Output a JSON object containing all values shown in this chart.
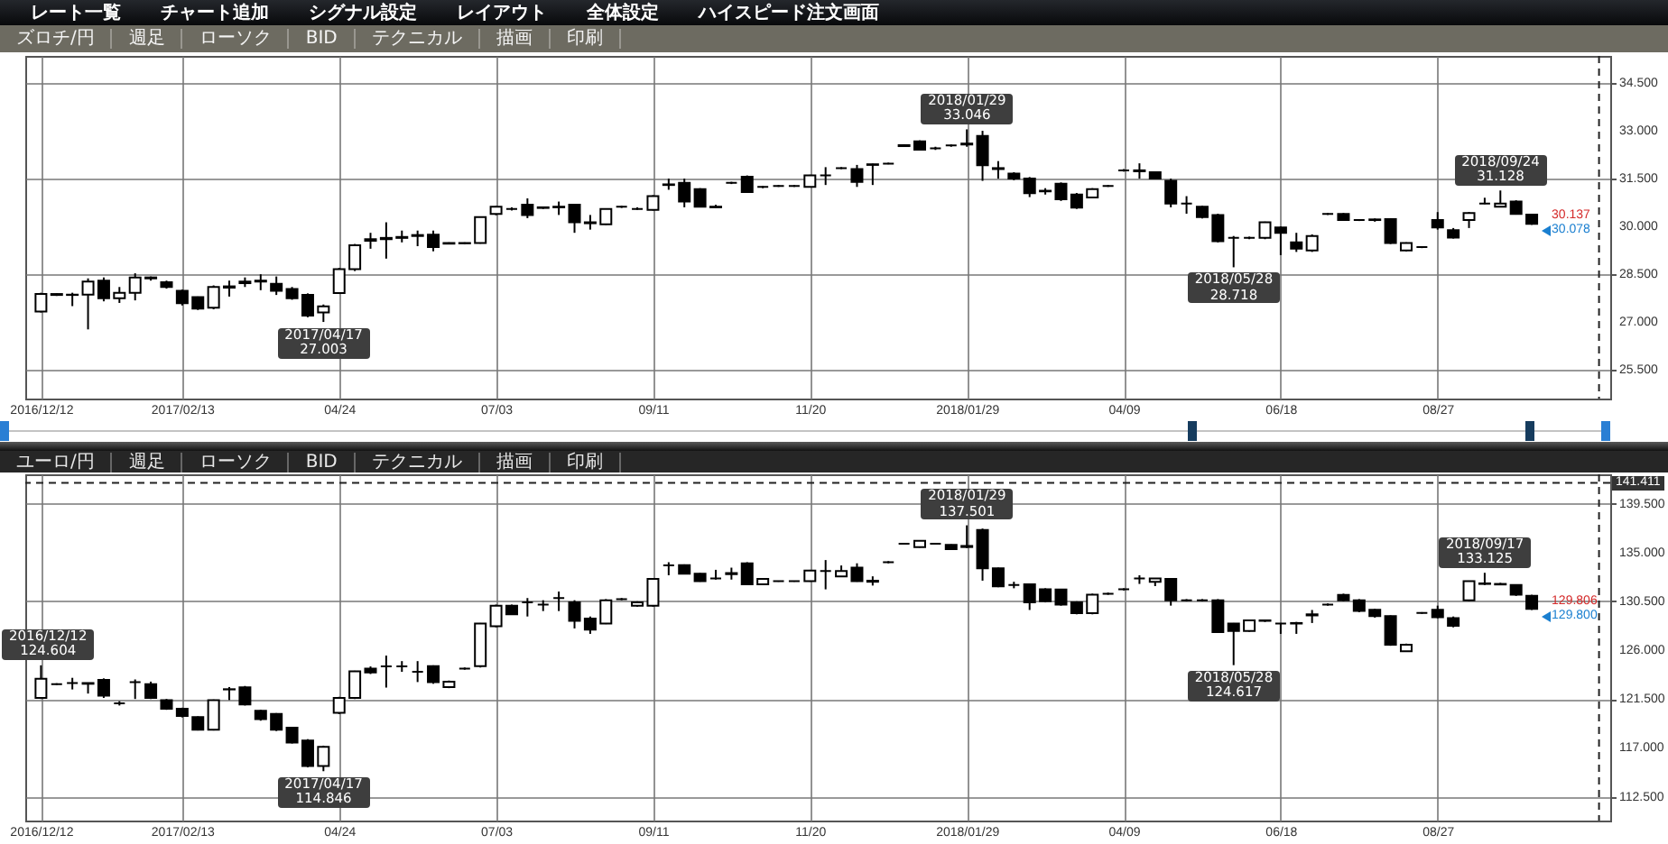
{
  "chart_data": [
    {
      "type": "other",
      "annotations": [
        "レート一覧",
        "チャート追加",
        "シグナル設定",
        "レイアウト",
        "全体設定",
        "ハイスピード注文画面"
      ]
    },
    {
      "type": "other",
      "annotations": [
        "ズロチ/円",
        "週足",
        "ローソク",
        "BID",
        "テクニカル",
        "描画",
        "印刷"
      ]
    },
    {
      "type": "candlestick",
      "annotations": [
        {
          "text": "2017/04/17\n27.003",
          "x": "2017-04-17",
          "y": 27.003
        },
        {
          "text": "2018/01/29\n33.046",
          "x": "2018-01-29",
          "y": 33.046
        },
        {
          "text": "2018/05/28\n28.718",
          "x": "2018-05-28",
          "y": 28.718
        },
        {
          "text": "2018/09/24\n31.128",
          "x": "2018-09-24",
          "y": 31.128
        },
        "30.137",
        "30.078"
      ],
      "x": [
        "2016-12-12",
        "2016-12-19",
        "2016-12-26",
        "2017-01-02",
        "2017-01-09",
        "2017-01-16",
        "2017-01-23",
        "2017-01-30",
        "2017-02-06",
        "2017-02-13",
        "2017-02-20",
        "2017-02-27",
        "2017-03-06",
        "2017-03-13",
        "2017-03-20",
        "2017-03-27",
        "2017-04-03",
        "2017-04-10",
        "2017-04-17",
        "2017-04-24",
        "2017-05-01",
        "2017-05-08",
        "2017-05-15",
        "2017-05-22",
        "2017-05-29",
        "2017-06-05",
        "2017-06-12",
        "2017-06-19",
        "2017-06-26",
        "2017-07-03",
        "2017-07-10",
        "2017-07-17",
        "2017-07-24",
        "2017-07-31",
        "2017-08-07",
        "2017-08-14",
        "2017-08-21",
        "2017-08-28",
        "2017-09-04",
        "2017-09-11",
        "2017-09-18",
        "2017-09-25",
        "2017-10-02",
        "2017-10-09",
        "2017-10-16",
        "2017-10-23",
        "2017-10-30",
        "2017-11-06",
        "2017-11-13",
        "2017-11-20",
        "2017-11-27",
        "2017-12-04",
        "2017-12-11",
        "2017-12-18",
        "2017-12-25",
        "2018-01-01",
        "2018-01-08",
        "2018-01-15",
        "2018-01-22",
        "2018-01-29",
        "2018-02-05",
        "2018-02-12",
        "2018-02-19",
        "2018-02-26",
        "2018-03-05",
        "2018-03-12",
        "2018-03-19",
        "2018-03-26",
        "2018-04-02",
        "2018-04-09",
        "2018-04-16",
        "2018-04-23",
        "2018-04-30",
        "2018-05-07",
        "2018-05-14",
        "2018-05-21",
        "2018-05-28",
        "2018-06-04",
        "2018-06-11",
        "2018-06-18",
        "2018-06-25",
        "2018-07-02",
        "2018-07-09",
        "2018-07-16",
        "2018-07-23",
        "2018-07-30",
        "2018-08-06",
        "2018-08-13",
        "2018-08-20",
        "2018-08-27",
        "2018-09-03",
        "2018-09-10",
        "2018-09-17",
        "2018-09-24",
        "2018-10-01",
        "2018-10-08"
      ],
      "ohlc": [
        [
          27.33,
          27.92,
          27.3,
          27.88
        ],
        [
          27.88,
          27.9,
          27.82,
          27.85
        ],
        [
          27.85,
          27.92,
          27.5,
          27.86
        ],
        [
          27.86,
          28.37,
          26.77,
          28.27
        ],
        [
          28.3,
          28.4,
          27.65,
          27.75
        ],
        [
          27.75,
          28.1,
          27.6,
          27.92
        ],
        [
          27.92,
          28.53,
          27.68,
          28.4
        ],
        [
          28.4,
          28.43,
          28.3,
          28.37
        ],
        [
          28.25,
          28.3,
          28.05,
          28.1
        ],
        [
          27.98,
          28.02,
          27.52,
          27.59
        ],
        [
          27.78,
          27.8,
          27.38,
          27.42
        ],
        [
          27.45,
          28.15,
          27.4,
          28.1
        ],
        [
          28.08,
          28.3,
          27.8,
          28.12
        ],
        [
          28.22,
          28.4,
          28.1,
          28.27
        ],
        [
          28.27,
          28.5,
          28.0,
          28.3
        ],
        [
          28.2,
          28.43,
          27.85,
          27.98
        ],
        [
          28.04,
          28.1,
          27.7,
          27.75
        ],
        [
          27.85,
          27.9,
          27.15,
          27.2
        ],
        [
          27.3,
          27.55,
          27.003,
          27.49
        ],
        [
          27.91,
          28.7,
          27.88,
          28.66
        ],
        [
          28.66,
          29.45,
          28.6,
          29.41
        ],
        [
          29.55,
          29.8,
          29.3,
          29.6
        ],
        [
          29.6,
          30.13,
          28.99,
          29.64
        ],
        [
          29.64,
          29.87,
          29.5,
          29.67
        ],
        [
          29.7,
          29.87,
          29.38,
          29.73
        ],
        [
          29.74,
          29.87,
          29.22,
          29.35
        ],
        [
          29.46,
          29.5,
          29.44,
          29.48
        ],
        [
          29.47,
          29.5,
          29.44,
          29.48
        ],
        [
          29.48,
          30.3,
          29.46,
          30.29
        ],
        [
          30.39,
          30.65,
          30.35,
          30.62
        ],
        [
          30.55,
          30.6,
          30.5,
          30.55
        ],
        [
          30.68,
          30.88,
          30.26,
          30.36
        ],
        [
          30.58,
          30.62,
          30.55,
          30.6
        ],
        [
          30.6,
          30.78,
          30.36,
          30.62
        ],
        [
          30.68,
          30.7,
          29.8,
          30.13
        ],
        [
          30.1,
          30.36,
          29.9,
          30.13
        ],
        [
          30.07,
          30.56,
          30.05,
          30.55
        ],
        [
          30.62,
          30.65,
          30.58,
          30.62
        ],
        [
          30.55,
          30.6,
          30.52,
          30.55
        ],
        [
          30.52,
          30.98,
          30.5,
          30.95
        ],
        [
          31.3,
          31.5,
          31.15,
          31.32
        ],
        [
          31.37,
          31.5,
          30.6,
          30.78
        ],
        [
          31.17,
          31.2,
          30.6,
          30.62
        ],
        [
          30.62,
          30.68,
          30.58,
          30.6
        ],
        [
          31.37,
          31.4,
          31.33,
          31.37
        ],
        [
          31.56,
          31.6,
          31.05,
          31.08
        ],
        [
          31.24,
          31.27,
          31.2,
          31.24
        ],
        [
          31.27,
          31.3,
          31.24,
          31.27
        ],
        [
          31.27,
          31.3,
          31.24,
          31.27
        ],
        [
          31.24,
          31.62,
          31.22,
          31.6
        ],
        [
          31.6,
          31.86,
          31.3,
          31.6
        ],
        [
          31.83,
          31.86,
          31.8,
          31.83
        ],
        [
          31.8,
          31.93,
          31.24,
          31.4
        ],
        [
          31.93,
          31.97,
          31.3,
          31.95
        ],
        [
          31.97,
          32.0,
          31.95,
          31.97
        ],
        [
          32.52,
          32.58,
          32.5,
          32.55
        ],
        [
          32.67,
          32.7,
          32.38,
          32.41
        ],
        [
          32.45,
          32.5,
          32.4,
          32.45
        ],
        [
          32.54,
          32.57,
          32.5,
          32.54
        ],
        [
          32.57,
          33.046,
          32.5,
          32.6
        ],
        [
          32.84,
          33.0,
          31.43,
          31.92
        ],
        [
          31.8,
          32.05,
          31.5,
          31.83
        ],
        [
          31.66,
          31.7,
          31.45,
          31.5
        ],
        [
          31.5,
          31.55,
          30.92,
          31.04
        ],
        [
          31.1,
          31.2,
          31.0,
          31.12
        ],
        [
          31.34,
          31.38,
          30.8,
          30.85
        ],
        [
          31.0,
          31.05,
          30.55,
          30.59
        ],
        [
          30.91,
          31.2,
          30.88,
          31.17
        ],
        [
          31.27,
          31.3,
          31.24,
          31.27
        ],
        [
          31.76,
          31.8,
          31.72,
          31.76
        ],
        [
          31.73,
          31.98,
          31.5,
          31.76
        ],
        [
          31.7,
          31.72,
          31.48,
          31.5
        ],
        [
          31.43,
          31.5,
          30.6,
          30.72
        ],
        [
          30.72,
          30.95,
          30.4,
          30.72
        ],
        [
          30.62,
          30.65,
          30.25,
          30.29
        ],
        [
          30.36,
          30.4,
          29.5,
          29.54
        ],
        [
          29.64,
          29.7,
          28.718,
          29.64
        ],
        [
          29.64,
          29.68,
          29.6,
          29.64
        ],
        [
          29.64,
          30.15,
          29.6,
          30.13
        ],
        [
          29.97,
          30.0,
          29.1,
          29.8
        ],
        [
          29.5,
          29.8,
          29.2,
          29.3
        ],
        [
          29.25,
          29.75,
          29.2,
          29.7
        ],
        [
          30.39,
          30.42,
          30.36,
          30.39
        ],
        [
          30.39,
          30.42,
          30.18,
          30.2
        ],
        [
          30.2,
          30.23,
          30.17,
          30.2
        ],
        [
          30.2,
          30.25,
          30.15,
          30.22
        ],
        [
          30.23,
          30.26,
          29.45,
          29.48
        ],
        [
          29.25,
          29.5,
          29.22,
          29.48
        ],
        [
          29.35,
          29.38,
          29.32,
          29.35
        ],
        [
          30.2,
          30.45,
          29.9,
          29.97
        ],
        [
          29.88,
          29.95,
          29.62,
          29.65
        ],
        [
          30.2,
          30.45,
          29.95,
          30.42
        ],
        [
          30.72,
          30.9,
          30.7,
          30.72
        ],
        [
          30.62,
          31.128,
          30.6,
          30.72
        ],
        [
          30.78,
          30.82,
          30.37,
          30.39
        ],
        [
          30.37,
          30.4,
          30.05,
          30.078
        ]
      ],
      "xlim": [
        "2016-12-05",
        "2018-11-12"
      ],
      "xticks": [
        {
          "value": "2016-12-12",
          "label": "2016/12/12"
        },
        {
          "value": "2017-02-13",
          "label": "2017/02/13"
        },
        {
          "value": "2017-04-24",
          "label": "04/24"
        },
        {
          "value": "2017-07-03",
          "label": "07/03"
        },
        {
          "value": "2017-09-11",
          "label": "09/11"
        },
        {
          "value": "2017-11-20",
          "label": "11/20"
        },
        {
          "value": "2018-01-29",
          "label": "2018/01/29"
        },
        {
          "value": "2018-04-09",
          "label": "04/09"
        },
        {
          "value": "2018-06-18",
          "label": "06/18"
        },
        {
          "value": "2018-08-27",
          "label": "08/27"
        }
      ],
      "ylim": [
        24.6,
        35.35
      ],
      "yticks": [
        {
          "value": 25.5,
          "label": "25.500"
        },
        {
          "value": 27,
          "label": "27.000"
        },
        {
          "value": 28.5,
          "label": "28.500"
        },
        {
          "value": 30,
          "label": "30.000"
        },
        {
          "value": 31.5,
          "label": "31.500"
        },
        {
          "value": 33,
          "label": "33.000"
        },
        {
          "value": 34.5,
          "label": "34.500"
        }
      ],
      "grid": true,
      "ref_lines": [
        {
          "axis": "x",
          "value": "2018-11-07",
          "line_style": "dashed"
        }
      ]
    },
    {
      "type": "other",
      "annotations": [
        "ユーロ/円",
        "週足",
        "ローソク",
        "BID",
        "テクニカル",
        "描画",
        "印刷"
      ]
    },
    {
      "type": "candlestick",
      "annotations": [
        {
          "text": "2016/12/12\n124.604",
          "x": "2016-12-12",
          "y": 124.604
        },
        {
          "text": "2017/04/17\n114.846",
          "x": "2017-04-17",
          "y": 114.846
        },
        {
          "text": "2018/01/29\n137.501",
          "x": "2018-01-29",
          "y": 137.501
        },
        {
          "text": "2018/05/28\n124.617",
          "x": "2018-05-28",
          "y": 124.617
        },
        {
          "text": "2018/09/17\n133.125",
          "x": "2018-09-17",
          "y": 133.125
        },
        "129.806",
        "129.800"
      ],
      "x": [
        "2016-12-12",
        "2016-12-19",
        "2016-12-26",
        "2017-01-02",
        "2017-01-09",
        "2017-01-16",
        "2017-01-23",
        "2017-01-30",
        "2017-02-06",
        "2017-02-13",
        "2017-02-20",
        "2017-02-27",
        "2017-03-06",
        "2017-03-13",
        "2017-03-20",
        "2017-03-27",
        "2017-04-03",
        "2017-04-10",
        "2017-04-17",
        "2017-04-24",
        "2017-05-01",
        "2017-05-08",
        "2017-05-15",
        "2017-05-22",
        "2017-05-29",
        "2017-06-05",
        "2017-06-12",
        "2017-06-19",
        "2017-06-26",
        "2017-07-03",
        "2017-07-10",
        "2017-07-17",
        "2017-07-24",
        "2017-07-31",
        "2017-08-07",
        "2017-08-14",
        "2017-08-21",
        "2017-08-28",
        "2017-09-04",
        "2017-09-11",
        "2017-09-18",
        "2017-09-25",
        "2017-10-02",
        "2017-10-09",
        "2017-10-16",
        "2017-10-23",
        "2017-10-30",
        "2017-11-06",
        "2017-11-13",
        "2017-11-20",
        "2017-11-27",
        "2017-12-04",
        "2017-12-11",
        "2017-12-18",
        "2017-12-25",
        "2018-01-01",
        "2018-01-08",
        "2018-01-15",
        "2018-01-22",
        "2018-01-29",
        "2018-02-05",
        "2018-02-12",
        "2018-02-19",
        "2018-02-26",
        "2018-03-05",
        "2018-03-12",
        "2018-03-19",
        "2018-03-26",
        "2018-04-02",
        "2018-04-09",
        "2018-04-16",
        "2018-04-23",
        "2018-04-30",
        "2018-05-07",
        "2018-05-14",
        "2018-05-21",
        "2018-05-28",
        "2018-06-04",
        "2018-06-11",
        "2018-06-18",
        "2018-06-25",
        "2018-07-02",
        "2018-07-09",
        "2018-07-16",
        "2018-07-23",
        "2018-07-30",
        "2018-08-06",
        "2018-08-13",
        "2018-08-20",
        "2018-08-27",
        "2018-09-03",
        "2018-09-10",
        "2018-09-17",
        "2018-09-24",
        "2018-10-01",
        "2018-10-08"
      ],
      "ohlc": [
        [
          121.6,
          124.604,
          121.5,
          123.36
        ],
        [
          122.87,
          122.95,
          122.8,
          122.87
        ],
        [
          122.97,
          123.45,
          122.38,
          122.97
        ],
        [
          122.97,
          123.0,
          122.0,
          122.9
        ],
        [
          123.26,
          123.4,
          121.6,
          121.8
        ],
        [
          121.1,
          121.3,
          120.9,
          121.1
        ],
        [
          123.06,
          123.3,
          121.5,
          123.06
        ],
        [
          122.87,
          123.1,
          121.5,
          121.6
        ],
        [
          121.4,
          121.5,
          120.5,
          120.6
        ],
        [
          120.6,
          120.7,
          119.8,
          119.93
        ],
        [
          119.84,
          119.9,
          118.6,
          118.66
        ],
        [
          118.66,
          121.45,
          118.6,
          121.4
        ],
        [
          122.38,
          122.6,
          121.4,
          122.4
        ],
        [
          122.58,
          122.7,
          120.9,
          121.0
        ],
        [
          120.42,
          120.5,
          119.5,
          119.64
        ],
        [
          120.13,
          120.2,
          118.55,
          118.66
        ],
        [
          118.86,
          118.9,
          117.4,
          117.49
        ],
        [
          117.68,
          117.8,
          115.2,
          115.33
        ],
        [
          115.33,
          117.2,
          114.846,
          117.1
        ],
        [
          120.23,
          121.7,
          120.1,
          121.6
        ],
        [
          121.6,
          124.1,
          121.5,
          124.04
        ],
        [
          124.3,
          124.5,
          123.8,
          123.95
        ],
        [
          124.5,
          125.5,
          122.55,
          124.5
        ],
        [
          124.5,
          124.99,
          124.0,
          124.5
        ],
        [
          124.0,
          124.99,
          123.06,
          124.0
        ],
        [
          124.53,
          124.6,
          122.9,
          123.06
        ],
        [
          122.6,
          123.2,
          122.5,
          123.1
        ],
        [
          124.3,
          124.4,
          124.2,
          124.3
        ],
        [
          124.53,
          128.5,
          124.4,
          128.45
        ],
        [
          128.2,
          130.2,
          128.1,
          130.1
        ],
        [
          130.1,
          130.2,
          129.3,
          129.3
        ],
        [
          130.4,
          130.8,
          129.1,
          130.4
        ],
        [
          130.2,
          130.6,
          129.6,
          130.2
        ],
        [
          130.8,
          131.4,
          129.6,
          130.8
        ],
        [
          130.4,
          130.6,
          128.0,
          128.7
        ],
        [
          128.9,
          129.1,
          127.5,
          127.9
        ],
        [
          128.45,
          130.7,
          128.4,
          130.6
        ],
        [
          130.7,
          130.8,
          130.6,
          130.7
        ],
        [
          130.1,
          130.5,
          130.0,
          130.4
        ],
        [
          130.1,
          132.6,
          130.0,
          132.56
        ],
        [
          133.8,
          134.1,
          132.9,
          133.8
        ],
        [
          133.83,
          133.9,
          133.0,
          133.05
        ],
        [
          133.05,
          133.1,
          132.3,
          132.36
        ],
        [
          132.6,
          133.4,
          132.5,
          132.6
        ],
        [
          133.0,
          133.6,
          132.5,
          133.1
        ],
        [
          134.0,
          134.1,
          132.0,
          132.07
        ],
        [
          132.07,
          132.6,
          132.0,
          132.56
        ],
        [
          132.36,
          132.4,
          132.3,
          132.36
        ],
        [
          132.36,
          132.4,
          132.3,
          132.36
        ],
        [
          132.36,
          133.4,
          132.3,
          133.34
        ],
        [
          133.3,
          134.3,
          131.6,
          133.3
        ],
        [
          132.8,
          133.8,
          132.8,
          133.3
        ],
        [
          133.6,
          134.0,
          132.3,
          132.36
        ],
        [
          132.3,
          132.8,
          131.95,
          132.4
        ],
        [
          134.1,
          134.2,
          134.0,
          134.1
        ],
        [
          135.8,
          135.85,
          135.75,
          135.8
        ],
        [
          135.5,
          136.1,
          135.45,
          136.08
        ],
        [
          135.8,
          135.85,
          135.75,
          135.8
        ],
        [
          135.7,
          135.75,
          135.25,
          135.3
        ],
        [
          135.5,
          137.501,
          135.4,
          135.6
        ],
        [
          137.06,
          137.2,
          132.4,
          133.53
        ],
        [
          133.53,
          133.6,
          131.8,
          131.87
        ],
        [
          132.0,
          132.3,
          131.7,
          132.0
        ],
        [
          132.07,
          132.1,
          129.7,
          130.4
        ],
        [
          131.6,
          131.7,
          130.4,
          130.5
        ],
        [
          131.58,
          131.6,
          130.1,
          130.2
        ],
        [
          130.4,
          130.5,
          129.3,
          129.4
        ],
        [
          129.4,
          131.2,
          129.3,
          131.1
        ],
        [
          131.2,
          131.3,
          131.1,
          131.2
        ],
        [
          131.6,
          131.7,
          131.5,
          131.6
        ],
        [
          132.6,
          132.9,
          132.1,
          132.6
        ],
        [
          132.3,
          132.6,
          131.9,
          132.6
        ],
        [
          132.56,
          132.6,
          130.1,
          130.6
        ],
        [
          130.6,
          130.7,
          130.5,
          130.6
        ],
        [
          130.6,
          130.7,
          130.5,
          130.6
        ],
        [
          130.6,
          130.7,
          127.6,
          127.66
        ],
        [
          128.45,
          128.5,
          124.617,
          127.76
        ],
        [
          127.76,
          128.8,
          127.7,
          128.74
        ],
        [
          128.74,
          128.8,
          128.6,
          128.7
        ],
        [
          128.45,
          128.5,
          127.5,
          128.45
        ],
        [
          128.45,
          128.6,
          127.5,
          128.5
        ],
        [
          129.2,
          129.7,
          128.5,
          129.3
        ],
        [
          130.2,
          130.3,
          130.1,
          130.2
        ],
        [
          131.09,
          131.2,
          130.5,
          130.6
        ],
        [
          130.6,
          130.7,
          129.5,
          129.62
        ],
        [
          129.72,
          129.8,
          129.0,
          129.13
        ],
        [
          129.13,
          129.2,
          126.4,
          126.49
        ],
        [
          125.9,
          126.6,
          125.85,
          126.49
        ],
        [
          129.42,
          129.5,
          129.35,
          129.42
        ],
        [
          129.72,
          130.1,
          128.94,
          129.03
        ],
        [
          128.94,
          129.1,
          128.1,
          128.25
        ],
        [
          130.6,
          132.4,
          130.5,
          132.36
        ],
        [
          132.1,
          133.125,
          132.0,
          132.15
        ],
        [
          132.1,
          132.2,
          132.0,
          132.05
        ],
        [
          132.0,
          132.05,
          131.0,
          131.1
        ],
        [
          131.0,
          131.1,
          129.7,
          129.8
        ]
      ],
      "xlim": [
        "2016-12-05",
        "2018-11-12"
      ],
      "xticks": [
        {
          "value": "2016-12-12",
          "label": "2016/12/12"
        },
        {
          "value": "2017-02-13",
          "label": "2017/02/13"
        },
        {
          "value": "2017-04-24",
          "label": "04/24"
        },
        {
          "value": "2017-07-03",
          "label": "07/03"
        },
        {
          "value": "2017-09-11",
          "label": "09/11"
        },
        {
          "value": "2017-11-20",
          "label": "11/20"
        },
        {
          "value": "2018-01-29",
          "label": "2018/01/29"
        },
        {
          "value": "2018-04-09",
          "label": "04/09"
        },
        {
          "value": "2018-06-18",
          "label": "06/18"
        },
        {
          "value": "2018-08-27",
          "label": "08/27"
        }
      ],
      "ylim": [
        110.3,
        142.2
      ],
      "yticks": [
        {
          "value": 112.5,
          "label": "112.500"
        },
        {
          "value": 117,
          "label": "117.000"
        },
        {
          "value": 121.5,
          "label": "121.500"
        },
        {
          "value": 126,
          "label": "126.000"
        },
        {
          "value": 130.5,
          "label": "130.500"
        },
        {
          "value": 135,
          "label": "135.000"
        },
        {
          "value": 139.5,
          "label": "139.500"
        }
      ],
      "grid": true,
      "ref_lines": [
        {
          "axis": "x",
          "value": "2018-11-07",
          "line_style": "dashed"
        },
        {
          "axis": "y",
          "value": 141.411,
          "label": "141.411",
          "line_style": "dashed"
        }
      ]
    }
  ]
}
